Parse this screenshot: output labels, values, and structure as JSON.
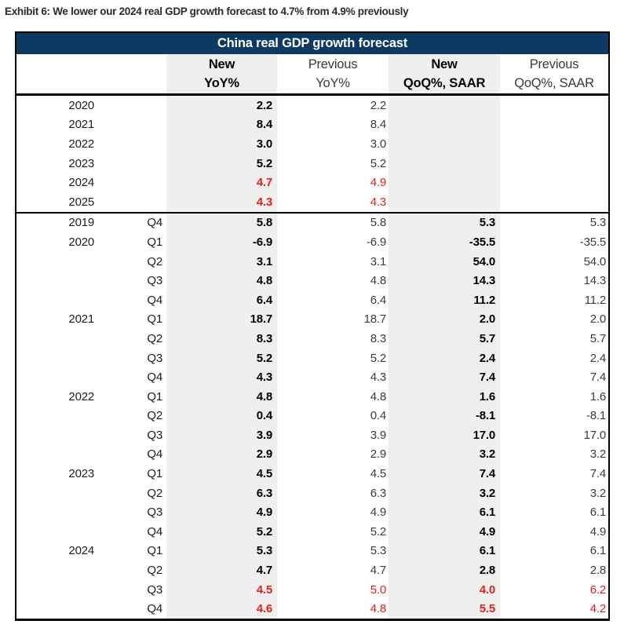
{
  "exhibit": {
    "title": "Exhibit 6: We lower our 2024 real GDP growth forecast to 4.7% from 4.9% previously"
  },
  "colors": {
    "header_bar_bg": "#0c3a63",
    "header_bar_text": "#ffffff",
    "highlight_column_bg": "#efefed",
    "forecast_red": "#e32119",
    "border_black": "#000000"
  },
  "table": {
    "title": "China real GDP growth forecast",
    "columns": {
      "new_yoy": {
        "line1": "New",
        "line2": "YoY%"
      },
      "prev_yoy": {
        "line1": "Previous",
        "line2": "YoY%"
      },
      "new_qoq": {
        "line1": "New",
        "line2": "QoQ%, SAAR"
      },
      "prev_qoq": {
        "line1": "Previous",
        "line2": "QoQ%, SAAR"
      }
    },
    "annual_rows": [
      {
        "year": "2020",
        "quarter": "",
        "new_yoy": "2.2",
        "prev_yoy": "2.2",
        "new_qoq": "",
        "prev_qoq": "",
        "red": false
      },
      {
        "year": "2021",
        "quarter": "",
        "new_yoy": "8.4",
        "prev_yoy": "8.4",
        "new_qoq": "",
        "prev_qoq": "",
        "red": false
      },
      {
        "year": "2022",
        "quarter": "",
        "new_yoy": "3.0",
        "prev_yoy": "3.0",
        "new_qoq": "",
        "prev_qoq": "",
        "red": false
      },
      {
        "year": "2023",
        "quarter": "",
        "new_yoy": "5.2",
        "prev_yoy": "5.2",
        "new_qoq": "",
        "prev_qoq": "",
        "red": false
      },
      {
        "year": "2024",
        "quarter": "",
        "new_yoy": "4.7",
        "prev_yoy": "4.9",
        "new_qoq": "",
        "prev_qoq": "",
        "red": true
      },
      {
        "year": "2025",
        "quarter": "",
        "new_yoy": "4.3",
        "prev_yoy": "4.3",
        "new_qoq": "",
        "prev_qoq": "",
        "red": true
      }
    ],
    "quarterly_rows": [
      {
        "year": "2019",
        "quarter": "Q4",
        "new_yoy": "5.8",
        "prev_yoy": "5.8",
        "new_qoq": "5.3",
        "prev_qoq": "5.3",
        "red": false
      },
      {
        "year": "2020",
        "quarter": "Q1",
        "new_yoy": "-6.9",
        "prev_yoy": "-6.9",
        "new_qoq": "-35.5",
        "prev_qoq": "-35.5",
        "red": false
      },
      {
        "year": "",
        "quarter": "Q2",
        "new_yoy": "3.1",
        "prev_yoy": "3.1",
        "new_qoq": "54.0",
        "prev_qoq": "54.0",
        "red": false
      },
      {
        "year": "",
        "quarter": "Q3",
        "new_yoy": "4.8",
        "prev_yoy": "4.8",
        "new_qoq": "14.3",
        "prev_qoq": "14.3",
        "red": false
      },
      {
        "year": "",
        "quarter": "Q4",
        "new_yoy": "6.4",
        "prev_yoy": "6.4",
        "new_qoq": "11.2",
        "prev_qoq": "11.2",
        "red": false
      },
      {
        "year": "2021",
        "quarter": "Q1",
        "new_yoy": "18.7",
        "prev_yoy": "18.7",
        "new_qoq": "2.0",
        "prev_qoq": "2.0",
        "red": false
      },
      {
        "year": "",
        "quarter": "Q2",
        "new_yoy": "8.3",
        "prev_yoy": "8.3",
        "new_qoq": "5.7",
        "prev_qoq": "5.7",
        "red": false
      },
      {
        "year": "",
        "quarter": "Q3",
        "new_yoy": "5.2",
        "prev_yoy": "5.2",
        "new_qoq": "2.4",
        "prev_qoq": "2.4",
        "red": false
      },
      {
        "year": "",
        "quarter": "Q4",
        "new_yoy": "4.3",
        "prev_yoy": "4.3",
        "new_qoq": "7.4",
        "prev_qoq": "7.4",
        "red": false
      },
      {
        "year": "2022",
        "quarter": "Q1",
        "new_yoy": "4.8",
        "prev_yoy": "4.8",
        "new_qoq": "1.6",
        "prev_qoq": "1.6",
        "red": false
      },
      {
        "year": "",
        "quarter": "Q2",
        "new_yoy": "0.4",
        "prev_yoy": "0.4",
        "new_qoq": "-8.1",
        "prev_qoq": "-8.1",
        "red": false
      },
      {
        "year": "",
        "quarter": "Q3",
        "new_yoy": "3.9",
        "prev_yoy": "3.9",
        "new_qoq": "17.0",
        "prev_qoq": "17.0",
        "red": false
      },
      {
        "year": "",
        "quarter": "Q4",
        "new_yoy": "2.9",
        "prev_yoy": "2.9",
        "new_qoq": "3.2",
        "prev_qoq": "3.2",
        "red": false
      },
      {
        "year": "2023",
        "quarter": "Q1",
        "new_yoy": "4.5",
        "prev_yoy": "4.5",
        "new_qoq": "7.4",
        "prev_qoq": "7.4",
        "red": false
      },
      {
        "year": "",
        "quarter": "Q2",
        "new_yoy": "6.3",
        "prev_yoy": "6.3",
        "new_qoq": "3.2",
        "prev_qoq": "3.2",
        "red": false
      },
      {
        "year": "",
        "quarter": "Q3",
        "new_yoy": "4.9",
        "prev_yoy": "4.9",
        "new_qoq": "6.1",
        "prev_qoq": "6.1",
        "red": false
      },
      {
        "year": "",
        "quarter": "Q4",
        "new_yoy": "5.2",
        "prev_yoy": "5.2",
        "new_qoq": "4.9",
        "prev_qoq": "4.9",
        "red": false
      },
      {
        "year": "2024",
        "quarter": "Q1",
        "new_yoy": "5.3",
        "prev_yoy": "5.3",
        "new_qoq": "6.1",
        "prev_qoq": "6.1",
        "red": false
      },
      {
        "year": "",
        "quarter": "Q2",
        "new_yoy": "4.7",
        "prev_yoy": "4.7",
        "new_qoq": "2.8",
        "prev_qoq": "2.8",
        "red": false
      },
      {
        "year": "",
        "quarter": "Q3",
        "new_yoy": "4.5",
        "prev_yoy": "5.0",
        "new_qoq": "4.0",
        "prev_qoq": "6.2",
        "red": true
      },
      {
        "year": "",
        "quarter": "Q4",
        "new_yoy": "4.6",
        "prev_yoy": "4.8",
        "new_qoq": "5.5",
        "prev_qoq": "4.2",
        "red": true
      }
    ]
  }
}
